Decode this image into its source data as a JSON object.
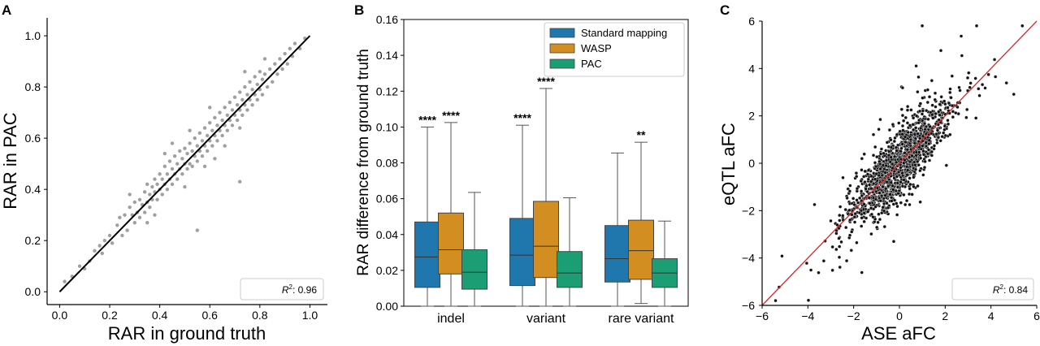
{
  "chart_data": [
    {
      "panel_label": "A",
      "type": "scatter",
      "xlabel": "RAR in ground truth",
      "ylabel": "RAR in PAC",
      "xlim": [
        -0.05,
        1.07
      ],
      "ylim": [
        -0.05,
        1.07
      ],
      "xticks": [
        "0.0",
        "0.2",
        "0.4",
        "0.6",
        "0.8",
        "1.0"
      ],
      "yticks": [
        "0.0",
        "0.2",
        "0.4",
        "0.6",
        "0.8",
        "1.0"
      ],
      "fit_line": {
        "x": [
          0.0,
          1.0
        ],
        "y": [
          0.0,
          1.0
        ],
        "color": "#000000"
      },
      "point_color": "#a0a0a0",
      "annotation": {
        "prefix": "R",
        "superscript": "2",
        "value": ": 0.96"
      },
      "grid": false,
      "points": [
        [
          0.02,
          0.04
        ],
        [
          0.05,
          0.06
        ],
        [
          0.08,
          0.1
        ],
        [
          0.1,
          0.09
        ],
        [
          0.12,
          0.12
        ],
        [
          0.14,
          0.16
        ],
        [
          0.16,
          0.18
        ],
        [
          0.17,
          0.15
        ],
        [
          0.18,
          0.2
        ],
        [
          0.2,
          0.22
        ],
        [
          0.21,
          0.19
        ],
        [
          0.23,
          0.26
        ],
        [
          0.24,
          0.29
        ],
        [
          0.25,
          0.22
        ],
        [
          0.26,
          0.3
        ],
        [
          0.27,
          0.24
        ],
        [
          0.28,
          0.33
        ],
        [
          0.29,
          0.3
        ],
        [
          0.3,
          0.27
        ],
        [
          0.3,
          0.35
        ],
        [
          0.31,
          0.31
        ],
        [
          0.32,
          0.36
        ],
        [
          0.32,
          0.29
        ],
        [
          0.33,
          0.34
        ],
        [
          0.34,
          0.31
        ],
        [
          0.34,
          0.39
        ],
        [
          0.35,
          0.35
        ],
        [
          0.35,
          0.42
        ],
        [
          0.36,
          0.33
        ],
        [
          0.36,
          0.38
        ],
        [
          0.37,
          0.41
        ],
        [
          0.37,
          0.36
        ],
        [
          0.38,
          0.44
        ],
        [
          0.38,
          0.39
        ],
        [
          0.39,
          0.36
        ],
        [
          0.39,
          0.42
        ],
        [
          0.4,
          0.46
        ],
        [
          0.4,
          0.4
        ],
        [
          0.41,
          0.38
        ],
        [
          0.41,
          0.44
        ],
        [
          0.42,
          0.49
        ],
        [
          0.42,
          0.42
        ],
        [
          0.43,
          0.46
        ],
        [
          0.43,
          0.4
        ],
        [
          0.44,
          0.51
        ],
        [
          0.44,
          0.44
        ],
        [
          0.45,
          0.48
        ],
        [
          0.45,
          0.42
        ],
        [
          0.46,
          0.53
        ],
        [
          0.46,
          0.46
        ],
        [
          0.47,
          0.5
        ],
        [
          0.47,
          0.44
        ],
        [
          0.48,
          0.55
        ],
        [
          0.48,
          0.48
        ],
        [
          0.49,
          0.52
        ],
        [
          0.49,
          0.46
        ],
        [
          0.5,
          0.5
        ],
        [
          0.5,
          0.56
        ],
        [
          0.51,
          0.54
        ],
        [
          0.51,
          0.48
        ],
        [
          0.52,
          0.58
        ],
        [
          0.52,
          0.5
        ],
        [
          0.53,
          0.55
        ],
        [
          0.53,
          0.49
        ],
        [
          0.54,
          0.6
        ],
        [
          0.54,
          0.53
        ],
        [
          0.55,
          0.57
        ],
        [
          0.55,
          0.51
        ],
        [
          0.56,
          0.62
        ],
        [
          0.56,
          0.55
        ],
        [
          0.57,
          0.59
        ],
        [
          0.57,
          0.53
        ],
        [
          0.58,
          0.64
        ],
        [
          0.58,
          0.57
        ],
        [
          0.59,
          0.61
        ],
        [
          0.59,
          0.55
        ],
        [
          0.6,
          0.66
        ],
        [
          0.6,
          0.59
        ],
        [
          0.61,
          0.63
        ],
        [
          0.61,
          0.57
        ],
        [
          0.62,
          0.68
        ],
        [
          0.62,
          0.61
        ],
        [
          0.63,
          0.65
        ],
        [
          0.63,
          0.59
        ],
        [
          0.64,
          0.7
        ],
        [
          0.64,
          0.63
        ],
        [
          0.65,
          0.67
        ],
        [
          0.65,
          0.61
        ],
        [
          0.66,
          0.72
        ],
        [
          0.66,
          0.65
        ],
        [
          0.67,
          0.69
        ],
        [
          0.67,
          0.63
        ],
        [
          0.68,
          0.74
        ],
        [
          0.68,
          0.67
        ],
        [
          0.69,
          0.71
        ],
        [
          0.69,
          0.65
        ],
        [
          0.7,
          0.76
        ],
        [
          0.7,
          0.69
        ],
        [
          0.71,
          0.73
        ],
        [
          0.71,
          0.67
        ],
        [
          0.72,
          0.78
        ],
        [
          0.72,
          0.71
        ],
        [
          0.73,
          0.75
        ],
        [
          0.73,
          0.69
        ],
        [
          0.74,
          0.8
        ],
        [
          0.74,
          0.73
        ],
        [
          0.75,
          0.77
        ],
        [
          0.75,
          0.71
        ],
        [
          0.76,
          0.82
        ],
        [
          0.76,
          0.75
        ],
        [
          0.77,
          0.79
        ],
        [
          0.77,
          0.73
        ],
        [
          0.78,
          0.84
        ],
        [
          0.78,
          0.77
        ],
        [
          0.79,
          0.81
        ],
        [
          0.79,
          0.75
        ],
        [
          0.8,
          0.86
        ],
        [
          0.8,
          0.79
        ],
        [
          0.81,
          0.83
        ],
        [
          0.81,
          0.77
        ],
        [
          0.82,
          0.85
        ],
        [
          0.83,
          0.8
        ],
        [
          0.84,
          0.87
        ],
        [
          0.85,
          0.82
        ],
        [
          0.86,
          0.89
        ],
        [
          0.87,
          0.85
        ],
        [
          0.88,
          0.91
        ],
        [
          0.89,
          0.87
        ],
        [
          0.9,
          0.93
        ],
        [
          0.91,
          0.89
        ],
        [
          0.92,
          0.95
        ],
        [
          0.93,
          0.92
        ],
        [
          0.94,
          0.97
        ],
        [
          0.96,
          0.95
        ],
        [
          0.98,
          0.99
        ],
        [
          0.45,
          0.58
        ],
        [
          0.52,
          0.63
        ],
        [
          0.58,
          0.49
        ],
        [
          0.66,
          0.57
        ],
        [
          0.72,
          0.64
        ],
        [
          0.72,
          0.43
        ],
        [
          0.55,
          0.24
        ],
        [
          0.38,
          0.3
        ],
        [
          0.6,
          0.72
        ],
        [
          0.74,
          0.86
        ],
        [
          0.82,
          0.91
        ],
        [
          0.5,
          0.41
        ],
        [
          0.62,
          0.52
        ],
        [
          0.42,
          0.54
        ],
        [
          0.35,
          0.27
        ],
        [
          0.28,
          0.38
        ]
      ]
    },
    {
      "panel_label": "B",
      "type": "box",
      "ylabel": "RAR difference from ground truth",
      "ylim": [
        0.0,
        0.16
      ],
      "yticks": [
        "0.00",
        "0.02",
        "0.04",
        "0.06",
        "0.08",
        "0.10",
        "0.12",
        "0.14",
        "0.16"
      ],
      "categories": [
        "indel",
        "variant",
        "rare variant"
      ],
      "legend_position": "top-right",
      "series": [
        {
          "name": "Standard mapping",
          "color": "#1f77ad",
          "boxes": [
            {
              "whislo": 0.0,
              "q1": 0.0105,
              "med": 0.0275,
              "q3": 0.047,
              "whishi": 0.1,
              "annotation": "****"
            },
            {
              "whislo": 0.0,
              "q1": 0.0115,
              "med": 0.0285,
              "q3": 0.049,
              "whishi": 0.101,
              "annotation": "****"
            },
            {
              "whislo": 0.0,
              "q1": 0.0135,
              "med": 0.0265,
              "q3": 0.045,
              "whishi": 0.0855,
              "annotation": ""
            }
          ]
        },
        {
          "name": "WASP",
          "color": "#d38e21",
          "boxes": [
            {
              "whislo": 0.0,
              "q1": 0.018,
              "med": 0.0315,
              "q3": 0.052,
              "whishi": 0.1025,
              "annotation": "****"
            },
            {
              "whislo": 0.0,
              "q1": 0.016,
              "med": 0.0335,
              "q3": 0.0585,
              "whishi": 0.1215,
              "annotation": "****"
            },
            {
              "whislo": 0.0015,
              "q1": 0.015,
              "med": 0.031,
              "q3": 0.048,
              "whishi": 0.0915,
              "annotation": "**"
            }
          ]
        },
        {
          "name": "PAC",
          "color": "#1c9e74",
          "boxes": [
            {
              "whislo": 0.0,
              "q1": 0.0095,
              "med": 0.019,
              "q3": 0.0315,
              "whishi": 0.0635,
              "annotation": ""
            },
            {
              "whislo": 0.0,
              "q1": 0.0105,
              "med": 0.0185,
              "q3": 0.0305,
              "whishi": 0.0605,
              "annotation": ""
            },
            {
              "whislo": 0.0,
              "q1": 0.0105,
              "med": 0.0185,
              "q3": 0.0265,
              "whishi": 0.0475,
              "annotation": ""
            }
          ]
        }
      ]
    },
    {
      "panel_label": "C",
      "type": "scatter",
      "xlabel": "ASE aFC",
      "ylabel": "eQTL aFC",
      "xlim": [
        -6,
        6
      ],
      "ylim": [
        -6,
        6
      ],
      "xticks": [
        "−6",
        "−4",
        "−2",
        "0",
        "2",
        "4",
        "6"
      ],
      "yticks": [
        "−6",
        "−4",
        "−2",
        "0",
        "2",
        "4",
        "6"
      ],
      "fit_line": {
        "x": [
          -6,
          6
        ],
        "y": [
          -6,
          6
        ],
        "color": "#d62728"
      },
      "point_color": "#111111",
      "annotation": {
        "prefix": "R",
        "superscript": "2",
        "value": ": 0.84"
      },
      "grid": false,
      "cloud": {
        "count": 1400,
        "spread_x": 1.0,
        "noise_y": 0.65
      }
    }
  ]
}
